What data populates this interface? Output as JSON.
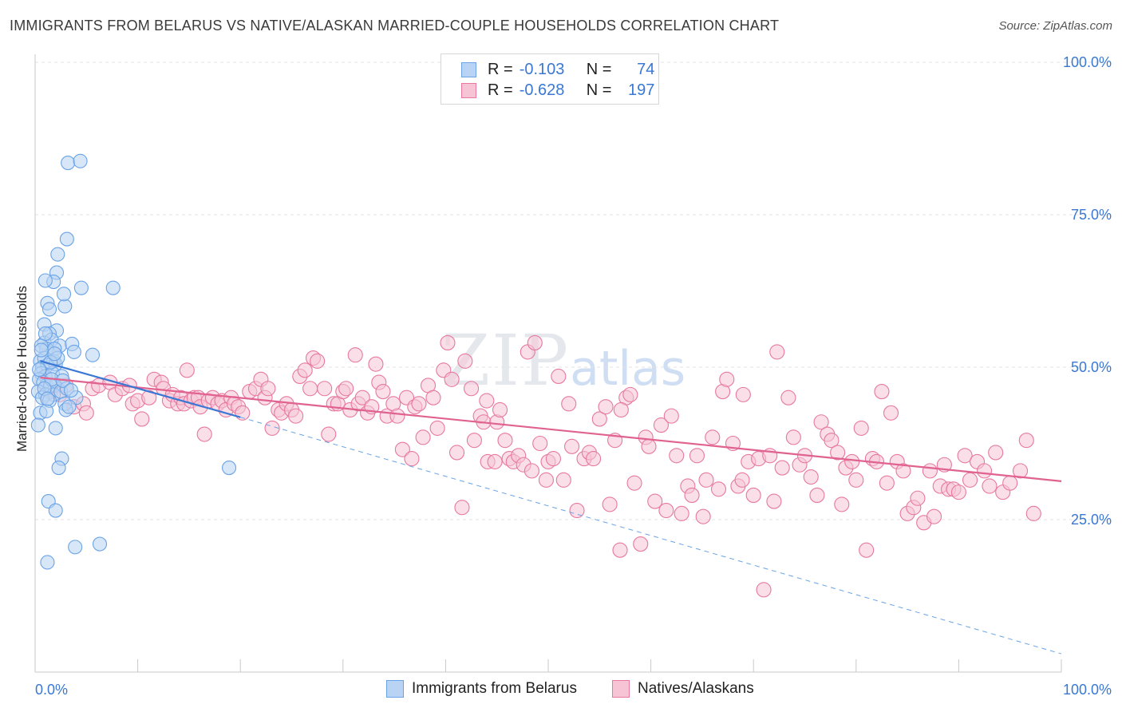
{
  "title": "IMMIGRANTS FROM BELARUS VS NATIVE/ALASKAN MARRIED-COUPLE HOUSEHOLDS CORRELATION CHART",
  "source": "Source: ZipAtlas.com",
  "watermark": {
    "zip": "ZIP",
    "atlas": "atlas"
  },
  "colors": {
    "blue": "#6aa3e6",
    "blue_fill": "#b8d3f3",
    "pink": "#e7789f",
    "pink_fill": "#f6c4d5",
    "axis_text": "#3a78d4"
  },
  "legend_top": {
    "rows": [
      {
        "r_label": "R =",
        "r_value": "-0.103",
        "n_label": "N =",
        "n_value": "74"
      },
      {
        "r_label": "R =",
        "r_value": "-0.628",
        "n_label": "N =",
        "n_value": "197"
      }
    ]
  },
  "legend_bottom": {
    "series1": "Immigrants from Belarus",
    "series2": "Natives/Alaskans"
  },
  "chart_data": {
    "type": "scatter",
    "title": "IMMIGRANTS FROM BELARUS VS NATIVE/ALASKAN MARRIED-COUPLE HOUSEHOLDS CORRELATION CHART",
    "xlabel": "",
    "ylabel": "Married-couple Households",
    "xlim": [
      0,
      100
    ],
    "ylim": [
      0,
      100
    ],
    "x_tick_labels": [
      "0.0%",
      "100.0%"
    ],
    "y_tick_labels": [
      "25.0%",
      "50.0%",
      "75.0%",
      "100.0%"
    ],
    "y_ticks": [
      25,
      50,
      75,
      100
    ],
    "grid": true,
    "series": [
      {
        "name": "Immigrants from Belarus",
        "r": -0.103,
        "n": 74,
        "trend_solid": {
          "x": [
            0.5,
            20
          ],
          "y": [
            51.0,
            41.8
          ]
        },
        "trend_dashed": {
          "x": [
            20,
            100
          ],
          "y": [
            41.8,
            3.0
          ]
        },
        "points": [
          [
            3.2,
            83.5
          ],
          [
            4.4,
            83.8
          ],
          [
            3.1,
            71.0
          ],
          [
            2.2,
            68.5
          ],
          [
            2.1,
            65.5
          ],
          [
            1.8,
            64.0
          ],
          [
            1.0,
            64.2
          ],
          [
            1.2,
            60.5
          ],
          [
            2.9,
            60.0
          ],
          [
            4.5,
            63.0
          ],
          [
            7.6,
            63.0
          ],
          [
            2.8,
            62.0
          ],
          [
            1.4,
            59.5
          ],
          [
            2.1,
            56.0
          ],
          [
            0.9,
            57.0
          ],
          [
            1.4,
            55.5
          ],
          [
            0.9,
            54.0
          ],
          [
            1.6,
            54.5
          ],
          [
            2.4,
            53.5
          ],
          [
            1.1,
            53.0
          ],
          [
            0.6,
            53.5
          ],
          [
            1.9,
            53.0
          ],
          [
            3.6,
            53.8
          ],
          [
            5.6,
            52.0
          ],
          [
            3.8,
            52.5
          ],
          [
            0.5,
            51.0
          ],
          [
            0.9,
            51.5
          ],
          [
            1.8,
            51.0
          ],
          [
            0.7,
            50.0
          ],
          [
            1.2,
            50.3
          ],
          [
            2.0,
            50.5
          ],
          [
            0.6,
            49.0
          ],
          [
            1.0,
            48.5
          ],
          [
            1.7,
            49.0
          ],
          [
            2.6,
            48.5
          ],
          [
            0.4,
            48.0
          ],
          [
            1.1,
            47.0
          ],
          [
            1.9,
            47.0
          ],
          [
            0.8,
            47.5
          ],
          [
            1.5,
            47.0
          ],
          [
            0.3,
            46.0
          ],
          [
            1.0,
            45.5
          ],
          [
            1.8,
            45.5
          ],
          [
            2.5,
            46.0
          ],
          [
            3.1,
            46.5
          ],
          [
            0.7,
            45.0
          ],
          [
            1.4,
            44.5
          ],
          [
            2.9,
            44.0
          ],
          [
            4.0,
            45.0
          ],
          [
            0.5,
            42.5
          ],
          [
            1.1,
            42.8
          ],
          [
            3.0,
            43.0
          ],
          [
            0.3,
            40.5
          ],
          [
            2.0,
            40.0
          ],
          [
            2.6,
            35.0
          ],
          [
            2.3,
            33.5
          ],
          [
            18.9,
            33.5
          ],
          [
            1.3,
            28.0
          ],
          [
            2.0,
            26.5
          ],
          [
            3.9,
            20.5
          ],
          [
            6.3,
            21.0
          ],
          [
            1.2,
            18.0
          ],
          [
            1.6,
            48.0
          ],
          [
            2.2,
            51.5
          ],
          [
            0.9,
            46.5
          ],
          [
            3.3,
            43.5
          ],
          [
            1.5,
            50.8
          ],
          [
            0.6,
            52.8
          ],
          [
            2.7,
            47.8
          ],
          [
            1.2,
            44.8
          ],
          [
            1.9,
            52.2
          ],
          [
            0.4,
            49.6
          ],
          [
            3.5,
            46.2
          ],
          [
            1.0,
            55.5
          ]
        ]
      },
      {
        "name": "Natives/Alaskans",
        "r": -0.628,
        "n": 197,
        "trend": {
          "x": [
            0.5,
            100
          ],
          "y": [
            48.3,
            31.3
          ]
        },
        "points": [
          [
            1.5,
            46.0
          ],
          [
            2.4,
            45.5
          ],
          [
            3.0,
            47.0
          ],
          [
            3.8,
            43.5
          ],
          [
            4.7,
            44.0
          ],
          [
            5.0,
            42.5
          ],
          [
            5.6,
            46.5
          ],
          [
            6.2,
            47.0
          ],
          [
            7.3,
            47.5
          ],
          [
            7.8,
            45.5
          ],
          [
            8.5,
            46.5
          ],
          [
            9.2,
            47.0
          ],
          [
            9.5,
            44.0
          ],
          [
            10.0,
            44.5
          ],
          [
            10.4,
            41.5
          ],
          [
            11.1,
            45.0
          ],
          [
            11.6,
            48.0
          ],
          [
            12.3,
            47.5
          ],
          [
            12.5,
            46.5
          ],
          [
            13.1,
            44.5
          ],
          [
            13.4,
            45.5
          ],
          [
            13.9,
            44.0
          ],
          [
            14.2,
            45.0
          ],
          [
            14.5,
            44.0
          ],
          [
            14.8,
            49.5
          ],
          [
            15.2,
            44.5
          ],
          [
            15.5,
            45.0
          ],
          [
            15.9,
            45.0
          ],
          [
            16.1,
            43.5
          ],
          [
            16.5,
            39.0
          ],
          [
            16.9,
            44.5
          ],
          [
            17.3,
            45.0
          ],
          [
            17.8,
            44.0
          ],
          [
            18.2,
            44.5
          ],
          [
            18.6,
            43.0
          ],
          [
            19.1,
            45.0
          ],
          [
            19.4,
            44.0
          ],
          [
            19.8,
            43.5
          ],
          [
            20.2,
            42.5
          ],
          [
            20.9,
            46.0
          ],
          [
            21.5,
            46.5
          ],
          [
            22.0,
            48.0
          ],
          [
            22.4,
            45.0
          ],
          [
            22.7,
            46.5
          ],
          [
            23.1,
            40.0
          ],
          [
            23.7,
            43.0
          ],
          [
            24.0,
            42.5
          ],
          [
            24.5,
            44.0
          ],
          [
            25.0,
            43.0
          ],
          [
            25.4,
            42.0
          ],
          [
            25.8,
            48.5
          ],
          [
            26.3,
            49.5
          ],
          [
            26.8,
            46.5
          ],
          [
            27.1,
            51.5
          ],
          [
            27.5,
            51.0
          ],
          [
            28.2,
            46.5
          ],
          [
            28.6,
            39.0
          ],
          [
            29.1,
            44.0
          ],
          [
            29.5,
            44.0
          ],
          [
            30.0,
            46.0
          ],
          [
            30.3,
            46.5
          ],
          [
            30.7,
            43.0
          ],
          [
            31.2,
            52.0
          ],
          [
            31.5,
            44.0
          ],
          [
            31.9,
            45.0
          ],
          [
            32.4,
            42.5
          ],
          [
            32.8,
            43.5
          ],
          [
            33.2,
            50.5
          ],
          [
            33.5,
            47.5
          ],
          [
            33.9,
            46.0
          ],
          [
            34.3,
            42.0
          ],
          [
            34.9,
            44.0
          ],
          [
            35.3,
            42.0
          ],
          [
            35.8,
            36.5
          ],
          [
            36.2,
            45.0
          ],
          [
            36.7,
            35.0
          ],
          [
            37.0,
            43.5
          ],
          [
            37.4,
            44.0
          ],
          [
            37.8,
            38.5
          ],
          [
            38.3,
            47.0
          ],
          [
            38.8,
            45.0
          ],
          [
            39.2,
            40.0
          ],
          [
            39.8,
            49.5
          ],
          [
            40.2,
            54.0
          ],
          [
            40.6,
            48.0
          ],
          [
            41.1,
            36.0
          ],
          [
            41.6,
            27.0
          ],
          [
            41.9,
            51.0
          ],
          [
            42.5,
            46.5
          ],
          [
            42.8,
            38.0
          ],
          [
            43.4,
            42.0
          ],
          [
            43.7,
            41.0
          ],
          [
            44.1,
            34.5
          ],
          [
            44.8,
            34.5
          ],
          [
            45.0,
            41.0
          ],
          [
            45.3,
            43.0
          ],
          [
            45.8,
            38.0
          ],
          [
            46.2,
            35.0
          ],
          [
            46.6,
            34.5
          ],
          [
            47.1,
            35.5
          ],
          [
            47.6,
            34.0
          ],
          [
            48.0,
            52.5
          ],
          [
            48.4,
            33.0
          ],
          [
            48.7,
            54.0
          ],
          [
            49.2,
            37.5
          ],
          [
            49.8,
            31.5
          ],
          [
            50.0,
            34.5
          ],
          [
            50.5,
            35.0
          ],
          [
            51.0,
            48.5
          ],
          [
            51.5,
            31.5
          ],
          [
            52.0,
            44.0
          ],
          [
            52.3,
            37.0
          ],
          [
            52.8,
            26.5
          ],
          [
            53.5,
            35.0
          ],
          [
            54.0,
            36.0
          ],
          [
            54.4,
            35.0
          ],
          [
            55.0,
            41.5
          ],
          [
            55.6,
            43.5
          ],
          [
            56.0,
            27.5
          ],
          [
            56.5,
            38.0
          ],
          [
            57.0,
            20.0
          ],
          [
            57.6,
            45.0
          ],
          [
            58.0,
            45.5
          ],
          [
            58.4,
            31.0
          ],
          [
            59.0,
            21.0
          ],
          [
            59.5,
            38.5
          ],
          [
            59.8,
            37.0
          ],
          [
            60.4,
            28.0
          ],
          [
            61.0,
            40.5
          ],
          [
            61.5,
            26.5
          ],
          [
            62.0,
            42.0
          ],
          [
            62.5,
            35.5
          ],
          [
            63.0,
            26.0
          ],
          [
            63.6,
            30.5
          ],
          [
            64.0,
            29.0
          ],
          [
            64.5,
            35.5
          ],
          [
            65.1,
            25.5
          ],
          [
            65.4,
            31.5
          ],
          [
            66.0,
            38.5
          ],
          [
            66.6,
            30.0
          ],
          [
            67.0,
            46.0
          ],
          [
            67.4,
            48.0
          ],
          [
            68.0,
            37.5
          ],
          [
            68.5,
            30.5
          ],
          [
            69.0,
            45.5
          ],
          [
            69.5,
            34.5
          ],
          [
            70.0,
            29.0
          ],
          [
            70.5,
            35.0
          ],
          [
            71.0,
            13.5
          ],
          [
            71.6,
            35.5
          ],
          [
            72.0,
            28.0
          ],
          [
            72.3,
            52.5
          ],
          [
            72.8,
            33.5
          ],
          [
            73.4,
            45.0
          ],
          [
            73.9,
            38.5
          ],
          [
            74.5,
            34.0
          ],
          [
            75.0,
            35.5
          ],
          [
            75.6,
            32.0
          ],
          [
            76.2,
            29.0
          ],
          [
            76.6,
            41.0
          ],
          [
            77.2,
            39.0
          ],
          [
            77.6,
            38.0
          ],
          [
            78.2,
            36.0
          ],
          [
            78.6,
            27.5
          ],
          [
            79.0,
            33.5
          ],
          [
            79.6,
            34.5
          ],
          [
            80.0,
            31.5
          ],
          [
            80.5,
            40.0
          ],
          [
            81.0,
            20.0
          ],
          [
            81.6,
            35.0
          ],
          [
            82.0,
            34.5
          ],
          [
            82.5,
            46.0
          ],
          [
            83.0,
            31.0
          ],
          [
            83.4,
            42.5
          ],
          [
            84.0,
            34.5
          ],
          [
            84.6,
            33.0
          ],
          [
            85.0,
            26.0
          ],
          [
            85.6,
            27.0
          ],
          [
            86.0,
            28.5
          ],
          [
            86.6,
            24.5
          ],
          [
            87.2,
            33.0
          ],
          [
            87.6,
            25.5
          ],
          [
            88.2,
            30.5
          ],
          [
            88.6,
            34.0
          ],
          [
            89.0,
            30.0
          ],
          [
            89.5,
            30.0
          ],
          [
            90.0,
            29.5
          ],
          [
            90.6,
            35.5
          ],
          [
            91.1,
            31.5
          ],
          [
            91.8,
            34.5
          ],
          [
            92.5,
            33.0
          ],
          [
            93.0,
            30.5
          ],
          [
            93.6,
            36.0
          ],
          [
            94.3,
            29.5
          ],
          [
            95.0,
            31.0
          ],
          [
            96.0,
            33.0
          ],
          [
            96.6,
            38.0
          ],
          [
            97.3,
            26.0
          ],
          [
            44.0,
            44.5
          ],
          [
            57.1,
            43.0
          ],
          [
            68.9,
            31.5
          ]
        ]
      }
    ]
  }
}
